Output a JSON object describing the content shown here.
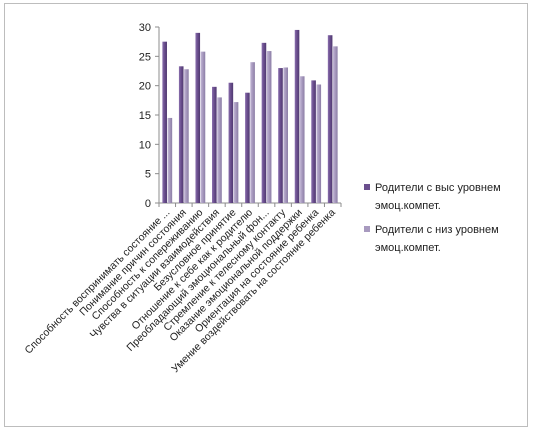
{
  "chart_data": {
    "type": "bar",
    "title": "",
    "xlabel": "",
    "ylabel": "",
    "ylim": [
      0,
      30
    ],
    "yticks": [
      0,
      5,
      10,
      15,
      20,
      25,
      30
    ],
    "grid": false,
    "legend_position": "right",
    "categories": [
      "Способность воспринимать состояние ...",
      "Понимание причин состояния",
      "Способность к сопереживанию",
      "Чувства в ситуации взаимодействия",
      "Безусловное принятие",
      "Отношение к себе как к родителю",
      "Преобладающий эмоциональный фон...",
      "Стремление к телесному контакту",
      "Оказание эмоциональной поддержки",
      "Ориентация на состояние ребенка",
      "Умение воздействовать на состояние ребенка"
    ],
    "series": [
      {
        "name": "Родители с выс уровнем эмоц.компет.",
        "color": "#6b4f8e",
        "values": [
          27.5,
          23.3,
          29,
          19.8,
          20.5,
          18.8,
          27.3,
          23,
          29.5,
          20.9,
          28.6
        ]
      },
      {
        "name": "Родители с низ уровнем эмоц.компет.",
        "color": "#a89abf",
        "values": [
          14.5,
          22.8,
          25.8,
          18,
          17.2,
          24,
          25.9,
          23.1,
          21.6,
          20.2,
          26.7
        ]
      }
    ]
  }
}
